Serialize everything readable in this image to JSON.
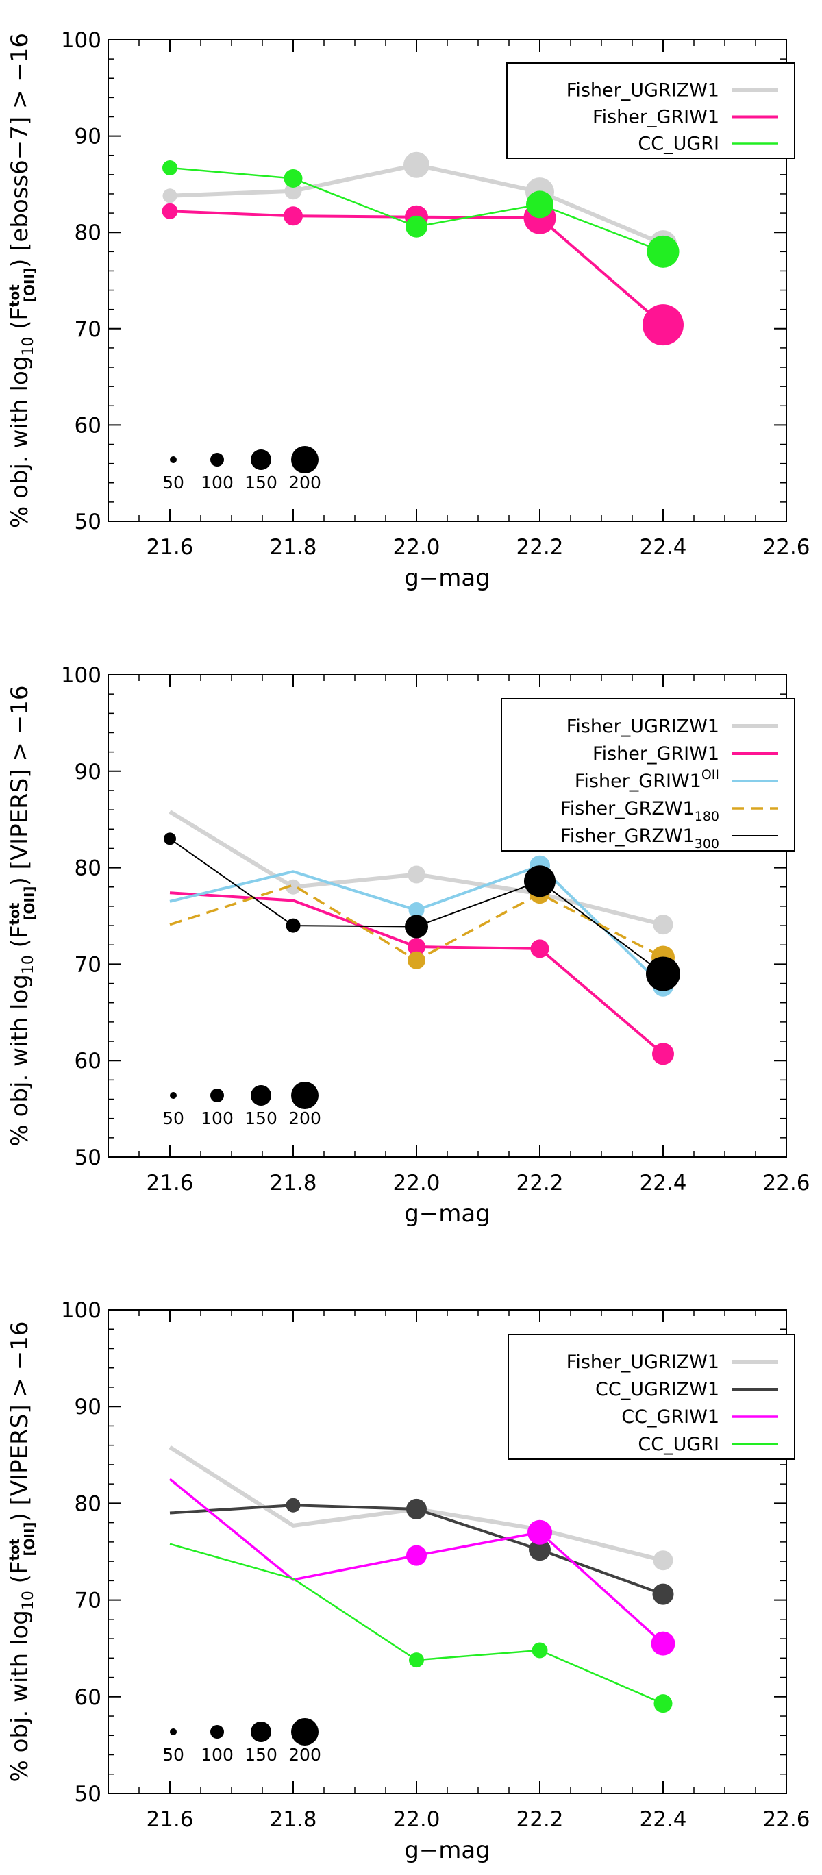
{
  "chart_data": [
    {
      "type": "line",
      "xlabel": "g−mag",
      "ylabel_parts": [
        "% obj. with log",
        "10",
        " (F",
        "tot",
        "[OII]",
        ") [eboss6−7] > −16"
      ],
      "xlim": [
        21.5,
        22.6
      ],
      "ylim": [
        50,
        100
      ],
      "x_ticks": [
        21.6,
        21.8,
        22.0,
        22.2,
        22.4,
        22.6
      ],
      "x_tick_labels": [
        "21.6",
        "21.8",
        "22.0",
        "22.2",
        "22.4",
        "22.6"
      ],
      "y_ticks": [
        50,
        60,
        70,
        80,
        90,
        100
      ],
      "y_tick_labels": [
        "50",
        "60",
        "70",
        "80",
        "90",
        "100"
      ],
      "size_legend": {
        "values": [
          50,
          100,
          150,
          200
        ],
        "labels": [
          "50",
          "100",
          "150",
          "200"
        ]
      },
      "series": [
        {
          "name": "Fisher_UGRIZW1",
          "label_main": "Fisher_UGRIZW1",
          "color": "#d3d3d3",
          "width": 6,
          "dash": "",
          "x": [
            21.6,
            21.8,
            22.0,
            22.2,
            22.4
          ],
          "values": [
            83.8,
            84.3,
            87.0,
            84.2,
            78.8
          ],
          "sizes": [
            55,
            75,
            140,
            160,
            150
          ]
        },
        {
          "name": "Fisher_GRIW1",
          "label_main": "Fisher_GRIW1",
          "color": "#ff1493",
          "width": 4,
          "dash": "",
          "x": [
            21.6,
            21.8,
            22.0,
            22.2,
            22.4
          ],
          "values": [
            82.2,
            81.7,
            81.6,
            81.5,
            70.4
          ],
          "sizes": [
            65,
            90,
            120,
            185,
            250
          ]
        },
        {
          "name": "CC_UGRI",
          "label_main": "CC_UGRI",
          "color": "#22ee22",
          "width": 2.5,
          "dash": "",
          "x": [
            21.6,
            21.8,
            22.0,
            22.2,
            22.4
          ],
          "values": [
            86.7,
            85.6,
            80.6,
            82.9,
            78.0
          ],
          "sizes": [
            60,
            85,
            110,
            150,
            185
          ]
        }
      ]
    },
    {
      "type": "line",
      "xlabel": "g−mag",
      "ylabel_parts": [
        "% obj. with log",
        "10",
        " (F",
        "tot",
        "[OII]",
        ") [VIPERS] > −16"
      ],
      "xlim": [
        21.5,
        22.6
      ],
      "ylim": [
        50,
        100
      ],
      "x_ticks": [
        21.6,
        21.8,
        22.0,
        22.2,
        22.4,
        22.6
      ],
      "x_tick_labels": [
        "21.6",
        "21.8",
        "22.0",
        "22.2",
        "22.4",
        "22.6"
      ],
      "y_ticks": [
        50,
        60,
        70,
        80,
        90,
        100
      ],
      "y_tick_labels": [
        "50",
        "60",
        "70",
        "80",
        "90",
        "100"
      ],
      "size_legend": {
        "values": [
          50,
          100,
          150,
          200
        ],
        "labels": [
          "50",
          "100",
          "150",
          "200"
        ]
      },
      "series": [
        {
          "name": "Fisher_UGRIZW1",
          "label_main": "Fisher_UGRIZW1",
          "color": "#d3d3d3",
          "width": 6,
          "dash": "",
          "x": [
            21.6,
            21.8,
            22.0,
            22.2,
            22.4
          ],
          "values": [
            85.8,
            78.0,
            79.3,
            77.3,
            74.1
          ],
          "sizes": [
            0,
            60,
            80,
            85,
            95
          ]
        },
        {
          "name": "Fisher_GRIW1",
          "label_main": "Fisher_GRIW1",
          "color": "#ff1493",
          "width": 4,
          "dash": "",
          "x": [
            21.6,
            21.8,
            22.0,
            22.2,
            22.4
          ],
          "values": [
            77.4,
            76.6,
            71.8,
            71.6,
            60.7
          ],
          "sizes": [
            0,
            0,
            80,
            85,
            110
          ]
        },
        {
          "name": "Fisher_GRIW1^OII",
          "label_main": "Fisher_GRIW1",
          "label_sup": "OII",
          "color": "#87ceeb",
          "width": 4,
          "dash": "",
          "x": [
            21.6,
            21.8,
            22.0,
            22.2,
            22.4
          ],
          "values": [
            76.5,
            79.6,
            75.6,
            80.2,
            67.7
          ],
          "sizes": [
            0,
            0,
            65,
            100,
            100
          ]
        },
        {
          "name": "Fisher_GRZW1_180",
          "label_main": "Fisher_GRZW1",
          "label_sub": "180",
          "color": "#daa520",
          "width": 3.5,
          "dash": "18,10",
          "x": [
            21.6,
            21.8,
            22.0,
            22.2,
            22.4
          ],
          "values": [
            74.1,
            78.2,
            70.4,
            77.3,
            70.7
          ],
          "sizes": [
            0,
            0,
            80,
            95,
            120
          ]
        },
        {
          "name": "Fisher_GRZW1_300",
          "label_main": "Fisher_GRZW1",
          "label_sub": "300",
          "color": "#000000",
          "width": 2,
          "dash": "",
          "x": [
            21.6,
            21.8,
            22.0,
            22.2,
            22.4
          ],
          "values": [
            83.0,
            74.0,
            73.9,
            78.6,
            69.0
          ],
          "sizes": [
            40,
            55,
            120,
            180,
            200
          ]
        }
      ]
    },
    {
      "type": "line",
      "xlabel": "g−mag",
      "ylabel_parts": [
        "% obj. with log",
        "10",
        " (F",
        "tot",
        "[OII]",
        ") [VIPERS] > −16"
      ],
      "xlim": [
        21.5,
        22.6
      ],
      "ylim": [
        50,
        100
      ],
      "x_ticks": [
        21.6,
        21.8,
        22.0,
        22.2,
        22.4,
        22.6
      ],
      "x_tick_labels": [
        "21.6",
        "21.8",
        "22.0",
        "22.2",
        "22.4",
        "22.6"
      ],
      "y_ticks": [
        50,
        60,
        70,
        80,
        90,
        100
      ],
      "y_tick_labels": [
        "50",
        "60",
        "70",
        "80",
        "90",
        "100"
      ],
      "size_legend": {
        "values": [
          50,
          100,
          150,
          200
        ],
        "labels": [
          "50",
          "100",
          "150",
          "200"
        ]
      },
      "series": [
        {
          "name": "Fisher_UGRIZW1",
          "label_main": "Fisher_UGRIZW1",
          "color": "#d3d3d3",
          "width": 6,
          "dash": "",
          "x": [
            21.6,
            21.8,
            22.0,
            22.2,
            22.4
          ],
          "values": [
            85.8,
            77.7,
            79.4,
            77.3,
            74.1
          ],
          "sizes": [
            0,
            0,
            0,
            0,
            95
          ]
        },
        {
          "name": "CC_UGRIZW1",
          "label_main": "CC_UGRIZW1",
          "color": "#404040",
          "width": 4,
          "dash": "",
          "x": [
            21.6,
            21.8,
            22.0,
            22.2,
            22.4
          ],
          "values": [
            79.0,
            79.8,
            79.4,
            75.2,
            70.6
          ],
          "sizes": [
            0,
            55,
            100,
            110,
            105
          ]
        },
        {
          "name": "CC_GRIW1",
          "label_main": "CC_GRIW1",
          "color": "#ff00ff",
          "width": 3.5,
          "dash": "",
          "x": [
            21.6,
            21.8,
            22.0,
            22.2,
            22.4
          ],
          "values": [
            82.5,
            72.1,
            74.6,
            77.0,
            65.5
          ],
          "sizes": [
            0,
            0,
            100,
            130,
            125
          ]
        },
        {
          "name": "CC_UGRI",
          "label_main": "CC_UGRI",
          "color": "#22ee22",
          "width": 2.5,
          "dash": "",
          "x": [
            21.6,
            21.8,
            22.0,
            22.2,
            22.4
          ],
          "values": [
            75.8,
            72.2,
            63.8,
            64.8,
            59.3
          ],
          "sizes": [
            0,
            0,
            60,
            65,
            85
          ]
        }
      ]
    }
  ]
}
